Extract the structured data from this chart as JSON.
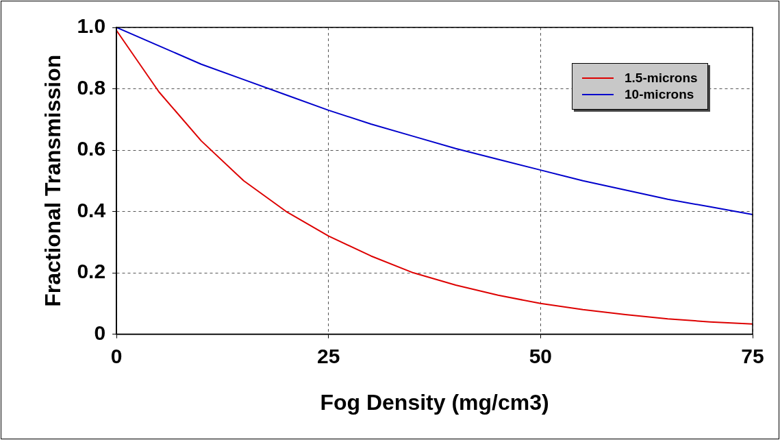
{
  "chart_data": {
    "type": "line",
    "xlabel": "Fog Density (mg/cm3)",
    "ylabel": "Fractional Transmission",
    "x": [
      0,
      5,
      10,
      15,
      20,
      25,
      30,
      35,
      40,
      45,
      50,
      55,
      60,
      65,
      70,
      75
    ],
    "series": [
      {
        "name": "1.5-microns",
        "color": "#dd0000",
        "values": [
          0.99,
          0.79,
          0.63,
          0.5,
          0.4,
          0.32,
          0.255,
          0.2,
          0.16,
          0.127,
          0.1,
          0.08,
          0.064,
          0.05,
          0.04,
          0.033
        ]
      },
      {
        "name": "10-microns",
        "color": "#0000cc",
        "values": [
          1.0,
          0.94,
          0.88,
          0.83,
          0.78,
          0.73,
          0.685,
          0.645,
          0.605,
          0.57,
          0.535,
          0.5,
          0.47,
          0.44,
          0.415,
          0.39
        ]
      }
    ],
    "xlim": [
      0,
      75
    ],
    "xticks": [
      0,
      25,
      50,
      75
    ],
    "ylim": [
      0,
      1
    ],
    "yticks": [
      {
        "value": 0,
        "label": "0"
      },
      {
        "value": 0.2,
        "label": "0.2"
      },
      {
        "value": 0.4,
        "label": "0.4"
      },
      {
        "value": 0.6,
        "label": "0.6"
      },
      {
        "value": 0.8,
        "label": "0.8"
      },
      {
        "value": 1,
        "label": "1.0"
      }
    ],
    "grid": true,
    "legend": "top right",
    "marker": "none",
    "line_style": "solid"
  }
}
